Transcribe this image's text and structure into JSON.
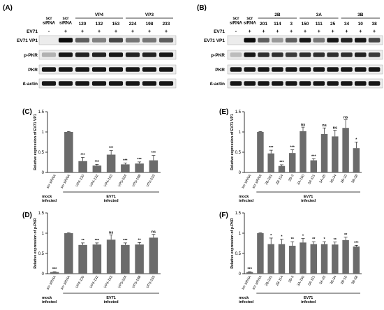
{
  "panels": {
    "A": {
      "label": "(A)",
      "col_headers": [
        {
          "text": "scr\nsiRNA",
          "group": null
        },
        {
          "text": "scr\nsiRNA",
          "group": null
        },
        {
          "text": "120",
          "group": "VP4"
        },
        {
          "text": "132",
          "group": "VP4"
        },
        {
          "text": "153",
          "group": "VP4"
        },
        {
          "text": "224",
          "group": "VP3"
        },
        {
          "text": "198",
          "group": "VP3"
        },
        {
          "text": "233",
          "group": "VP3"
        }
      ],
      "groups": [
        "VP4",
        "VP3"
      ],
      "ev71_row_label": "EV71",
      "ev71_signs": [
        "-",
        "+",
        "+",
        "+",
        "+",
        "+",
        "+",
        "+"
      ],
      "blot_labels": [
        "EV71 VP1",
        "p-PKR",
        "PKR",
        "ß-actin"
      ]
    },
    "B": {
      "label": "(B)",
      "col_headers": [
        {
          "text": "scr\nsiRNA",
          "group": null
        },
        {
          "text": "scr\nsiRNA",
          "group": null
        },
        {
          "text": "201",
          "group": "2B"
        },
        {
          "text": "114",
          "group": "2B"
        },
        {
          "text": "3",
          "group": "2B"
        },
        {
          "text": "150",
          "group": "3A"
        },
        {
          "text": "111",
          "group": "3A"
        },
        {
          "text": "25",
          "group": "3A"
        },
        {
          "text": "34",
          "group": "3B"
        },
        {
          "text": "10",
          "group": "3B"
        },
        {
          "text": "38",
          "group": "3B"
        }
      ],
      "groups": [
        "2B",
        "3A",
        "3B"
      ],
      "ev71_row_label": "EV71",
      "ev71_signs": [
        "-",
        "+",
        "+",
        "+",
        "+",
        "+",
        "+",
        "+",
        "+",
        "+",
        "+"
      ],
      "blot_labels": [
        "EV71 VP1",
        "p-PKR",
        "PKR",
        "ß-actin"
      ]
    }
  },
  "chart_data": [
    {
      "panel": "(C)",
      "type": "bar",
      "ylabel": "Relative expression of EV71 VP1",
      "ylim": [
        0,
        1.5
      ],
      "yticks": [
        0,
        0.5,
        1,
        1.5
      ],
      "categories": [
        "scr siRNA",
        "scr siRNA",
        "VP4-120",
        "VP4-132",
        "VP4-153",
        "VP3-224",
        "VP3-198",
        "VP3-233"
      ],
      "values": [
        0.0,
        1.0,
        0.28,
        0.17,
        0.44,
        0.2,
        0.22,
        0.3
      ],
      "errors": [
        0.0,
        0.01,
        0.09,
        0.03,
        0.1,
        0.03,
        0.04,
        0.12
      ],
      "significance": [
        "",
        "",
        "***",
        "***",
        "***",
        "***",
        "***",
        "***"
      ],
      "group_labels": [
        {
          "text": "mock\ninfected",
          "from": 0,
          "to": 0
        },
        {
          "text": "EV71\ninfected",
          "from": 1,
          "to": 7
        }
      ]
    },
    {
      "panel": "(D)",
      "type": "bar",
      "ylabel": "Relative expression of p-PKR",
      "ylim": [
        0,
        1.5
      ],
      "yticks": [
        0,
        0.5,
        1,
        1.5
      ],
      "categories": [
        "scr siRNA",
        "scr siRNA",
        "VP4-120",
        "VP4-132",
        "VP4-153",
        "VP3-224",
        "VP3-198",
        "VP3-233"
      ],
      "values": [
        0.04,
        1.0,
        0.71,
        0.72,
        0.84,
        0.71,
        0.72,
        0.89
      ],
      "errors": [
        0.01,
        0.01,
        0.05,
        0.04,
        0.12,
        0.05,
        0.05,
        0.08
      ],
      "significance": [
        "***",
        "",
        "**",
        "***",
        "ns",
        "***",
        "**",
        "ns"
      ],
      "group_labels": [
        {
          "text": "mock\ninfected",
          "from": 0,
          "to": 0
        },
        {
          "text": "EV71\ninfected",
          "from": 1,
          "to": 7
        }
      ]
    },
    {
      "panel": "(E)",
      "type": "bar",
      "ylabel": "Relative expression of EV71 VP1",
      "ylim": [
        0,
        1.5
      ],
      "yticks": [
        0,
        0.5,
        1,
        1.5
      ],
      "categories": [
        "scr siRNA",
        "scr siRNA",
        "2B-201",
        "2B-114",
        "2B-3",
        "3A-150",
        "3A-111",
        "3A-25",
        "3B-34",
        "3B-10",
        "3B-38"
      ],
      "values": [
        0.0,
        1.0,
        0.47,
        0.16,
        0.48,
        1.02,
        0.3,
        0.95,
        0.89,
        1.1,
        0.6
      ],
      "errors": [
        0.0,
        0.01,
        0.08,
        0.03,
        0.08,
        0.1,
        0.04,
        0.15,
        0.15,
        0.2,
        0.15
      ],
      "significance": [
        "",
        "",
        "***",
        "***",
        "***",
        "ns",
        "***",
        "ns",
        "ns",
        "ns",
        "*"
      ],
      "group_labels": [
        {
          "text": "mock\ninfected",
          "from": 0,
          "to": 0
        },
        {
          "text": "EV71\ninfected",
          "from": 1,
          "to": 10
        }
      ]
    },
    {
      "panel": "(F)",
      "type": "bar",
      "ylabel": "Relative expression of p-PKR",
      "ylim": [
        0,
        1.5
      ],
      "yticks": [
        0,
        0.5,
        1,
        1.5
      ],
      "categories": [
        "scr siRNA",
        "scr siRNA",
        "2B-201",
        "2B-114",
        "2B-3",
        "3A-150",
        "3A-111",
        "3A-25",
        "3B-34",
        "3B-10",
        "3B-38"
      ],
      "values": [
        0.04,
        1.0,
        0.73,
        0.73,
        0.69,
        0.77,
        0.73,
        0.73,
        0.72,
        0.83,
        0.67
      ],
      "errors": [
        0.01,
        0.01,
        0.15,
        0.12,
        0.1,
        0.1,
        0.06,
        0.06,
        0.06,
        0.07,
        0.03
      ],
      "significance": [
        "***",
        "",
        "*",
        "*",
        "**",
        "*",
        "**",
        "*",
        "**",
        "**",
        "***"
      ],
      "group_labels": [
        {
          "text": "mock\ninfected",
          "from": 0,
          "to": 0
        },
        {
          "text": "EV71\ninfected",
          "from": 1,
          "to": 10
        }
      ]
    }
  ],
  "colors": {
    "bar": "#6b6b6b",
    "blot_background": "#ececec",
    "band": "#000000",
    "axis": "#000000"
  }
}
